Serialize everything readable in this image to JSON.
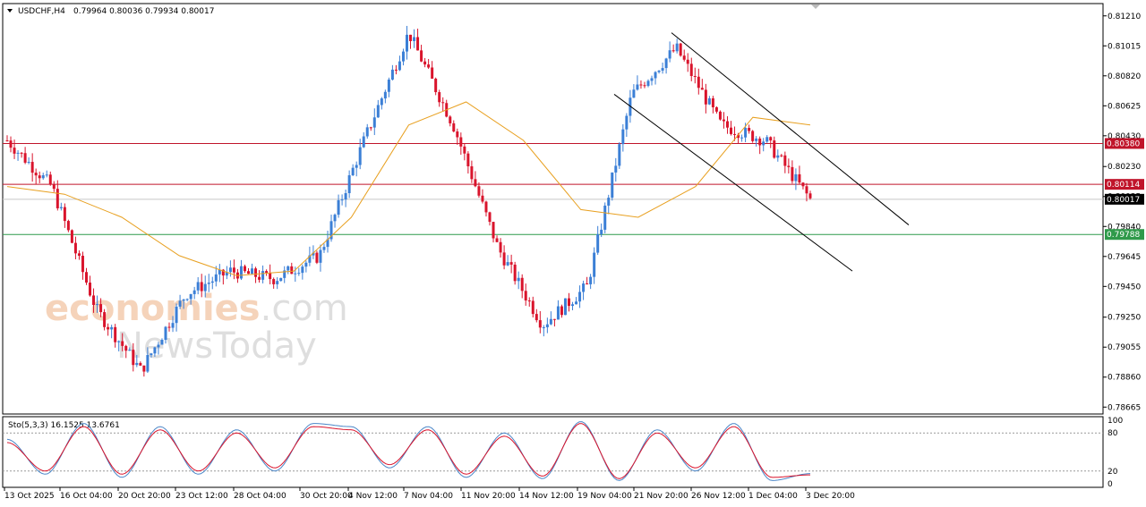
{
  "header": {
    "symbol": "USDCHF,H4",
    "quote": "0.79964 0.80036 0.79934 0.80017"
  },
  "watermark": {
    "brand_part1": "economies",
    "brand_part2": ".com",
    "brand_line2": "NewsToday"
  },
  "price_axis": {
    "ticks": [
      "0.81210",
      "0.81015",
      "0.80820",
      "0.80625",
      "0.80430",
      "0.80230",
      "0.80035",
      "0.79840",
      "0.79645",
      "0.79450",
      "0.79250",
      "0.79055",
      "0.78860",
      "0.78665"
    ],
    "range": [
      0.7862,
      0.8129
    ]
  },
  "horizontal_lines": [
    {
      "label": "0.80380",
      "value": 0.8038,
      "color": "#c0142a"
    },
    {
      "label": "0.80114",
      "value": 0.80114,
      "color": "#c0142a"
    },
    {
      "label": "0.79788",
      "value": 0.79788,
      "color": "#2f9a4a"
    }
  ],
  "current_price": {
    "label": "0.80017",
    "value": 0.80017
  },
  "time_axis": {
    "labels": [
      "13 Oct 2025",
      "16 Oct 04:00",
      "20 Oct 20:00",
      "23 Oct 12:00",
      "28 Oct 04:00",
      "30 Oct 20:00",
      "4 Nov 12:00",
      "7 Nov 04:00",
      "11 Nov 20:00",
      "14 Nov 12:00",
      "19 Nov 04:00",
      "21 Nov 20:00",
      "26 Nov 12:00",
      "1 Dec 04:00",
      "3 Dec 20:00"
    ]
  },
  "stochastic": {
    "label": "Sto(5,3,3) 16.1525 13.6761",
    "ticks": [
      "100",
      "80",
      "20",
      "0"
    ],
    "levels": [
      80,
      20
    ]
  },
  "colors": {
    "bull": "#3b7fd6",
    "bear": "#d9142c",
    "ma": "#e8a020",
    "sto_main": "#4a86c8",
    "sto_signal": "#d9142c",
    "channel": "#000000"
  },
  "chart_data": {
    "type": "candlestick",
    "symbol": "USDCHF",
    "timeframe": "H4",
    "price_path": [
      {
        "date": "13 Oct 2025",
        "price": 0.804
      },
      {
        "date": "14 Oct 2025",
        "price": 0.801
      },
      {
        "date": "16 Oct 04:00",
        "price": 0.793
      },
      {
        "date": "17 Oct 2025",
        "price": 0.789
      },
      {
        "date": "20 Oct 20:00",
        "price": 0.794
      },
      {
        "date": "23 Oct 12:00",
        "price": 0.7955
      },
      {
        "date": "27 Oct 2025",
        "price": 0.795
      },
      {
        "date": "28 Oct 04:00",
        "price": 0.7965
      },
      {
        "date": "30 Oct 20:00",
        "price": 0.804
      },
      {
        "date": "4 Nov 12:00",
        "price": 0.811
      },
      {
        "date": "7 Nov 04:00",
        "price": 0.805
      },
      {
        "date": "11 Nov 20:00",
        "price": 0.797
      },
      {
        "date": "13 Nov 2025",
        "price": 0.792
      },
      {
        "date": "14 Nov 12:00",
        "price": 0.7945
      },
      {
        "date": "19 Nov 04:00",
        "price": 0.807
      },
      {
        "date": "21 Nov 20:00",
        "price": 0.81
      },
      {
        "date": "26 Nov 12:00",
        "price": 0.805
      },
      {
        "date": "1 Dec 04:00",
        "price": 0.804
      },
      {
        "date": "3 Dec 20:00",
        "price": 0.80017
      }
    ],
    "channel": {
      "upper": [
        {
          "date": "21 Nov 20:00",
          "price": 0.811
        },
        {
          "date": "4 Dec 2025",
          "price": 0.7985
        }
      ],
      "lower": [
        {
          "date": "19 Nov 04:00",
          "price": 0.807
        },
        {
          "date": "3 Dec 2025",
          "price": 0.7955
        }
      ]
    },
    "moving_average_path": [
      0.801,
      0.8005,
      0.799,
      0.7965,
      0.7952,
      0.7955,
      0.799,
      0.805,
      0.8065,
      0.804,
      0.7995,
      0.799,
      0.801,
      0.8055,
      0.805
    ],
    "stochastic_main": [
      70,
      15,
      95,
      10,
      90,
      15,
      85,
      20,
      95,
      90,
      25,
      90,
      10,
      80,
      8,
      98,
      5,
      85,
      20,
      95,
      5,
      16
    ],
    "stochastic_signal": [
      65,
      20,
      90,
      15,
      85,
      20,
      80,
      25,
      90,
      85,
      30,
      85,
      15,
      75,
      12,
      95,
      8,
      80,
      25,
      90,
      10,
      14
    ]
  }
}
